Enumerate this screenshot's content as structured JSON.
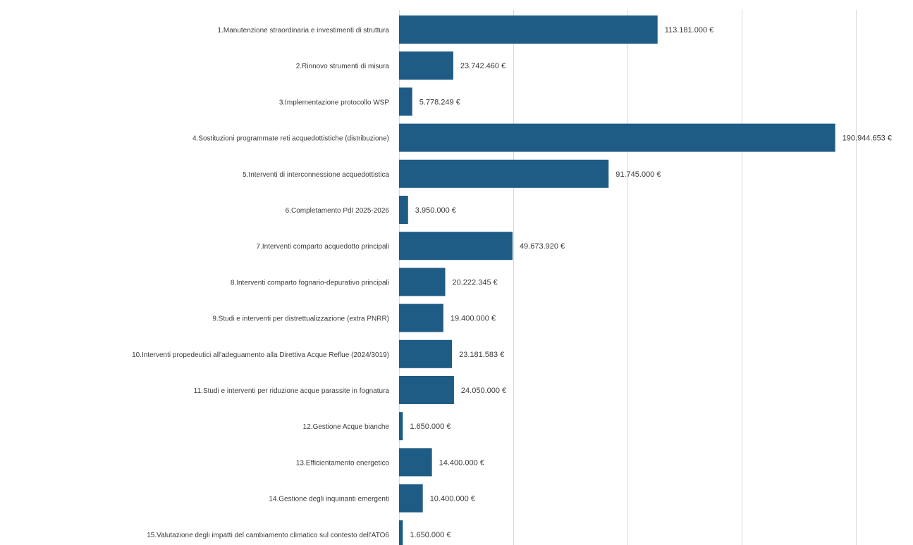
{
  "chart_data": {
    "type": "bar",
    "orientation": "horizontal",
    "title": "",
    "xlabel": "",
    "ylabel": "",
    "grid": "vertical",
    "legend": "none",
    "bar_color": "#1f5c85",
    "xlim": [
      0,
      200000000
    ],
    "categories": [
      "1.Manutenzione straordinaria e investimenti di struttura",
      "2.Rinnovo strumenti di misura",
      "3.Implementazione protocollo WSP",
      "4.Sostituzioni programmate reti acquedottistiche (distribuzione)",
      "5.Interventi di interconnessione acquedottistica",
      "6.Completamento PdI 2025-2026",
      "7.Interventi comparto acquedotto principali",
      "8.Interventi comparto fognario-depurativo principali",
      "9.Studi e interventi per distrettualizzazione (extra PNRR)",
      "10.Interventi propedeutici all'adeguamento alla Direttiva Acque Reflue  (2024/3019)",
      "11.Studi e interventi per riduzione acque parassite in fognatura",
      "12.Gestione Acque bianche",
      "13.Efficientamento energetico",
      "14.Gestione degli inquinanti emergenti",
      "15.Valutazione degli impatti del cambiamento climatico sul contesto dell'ATO6"
    ],
    "values": [
      113181000,
      23742460,
      5778249,
      190944653,
      91745000,
      3950000,
      49673920,
      20222345,
      19400000,
      23181583,
      24050000,
      1650000,
      14400000,
      10400000,
      1650000
    ],
    "data_labels": [
      "113.181.000 €",
      "23.742.460 €",
      "5.778.249 €",
      "190.944.653 €",
      "91.745.000 €",
      "3.950.000 €",
      "49.673.920 €",
      "20.222.345 €",
      "19.400.000 €",
      "23.181.583 €",
      "24.050.000 €",
      "1.650.000 €",
      "14.400.000 €",
      "10.400.000 €",
      "1.650.000 €"
    ]
  }
}
